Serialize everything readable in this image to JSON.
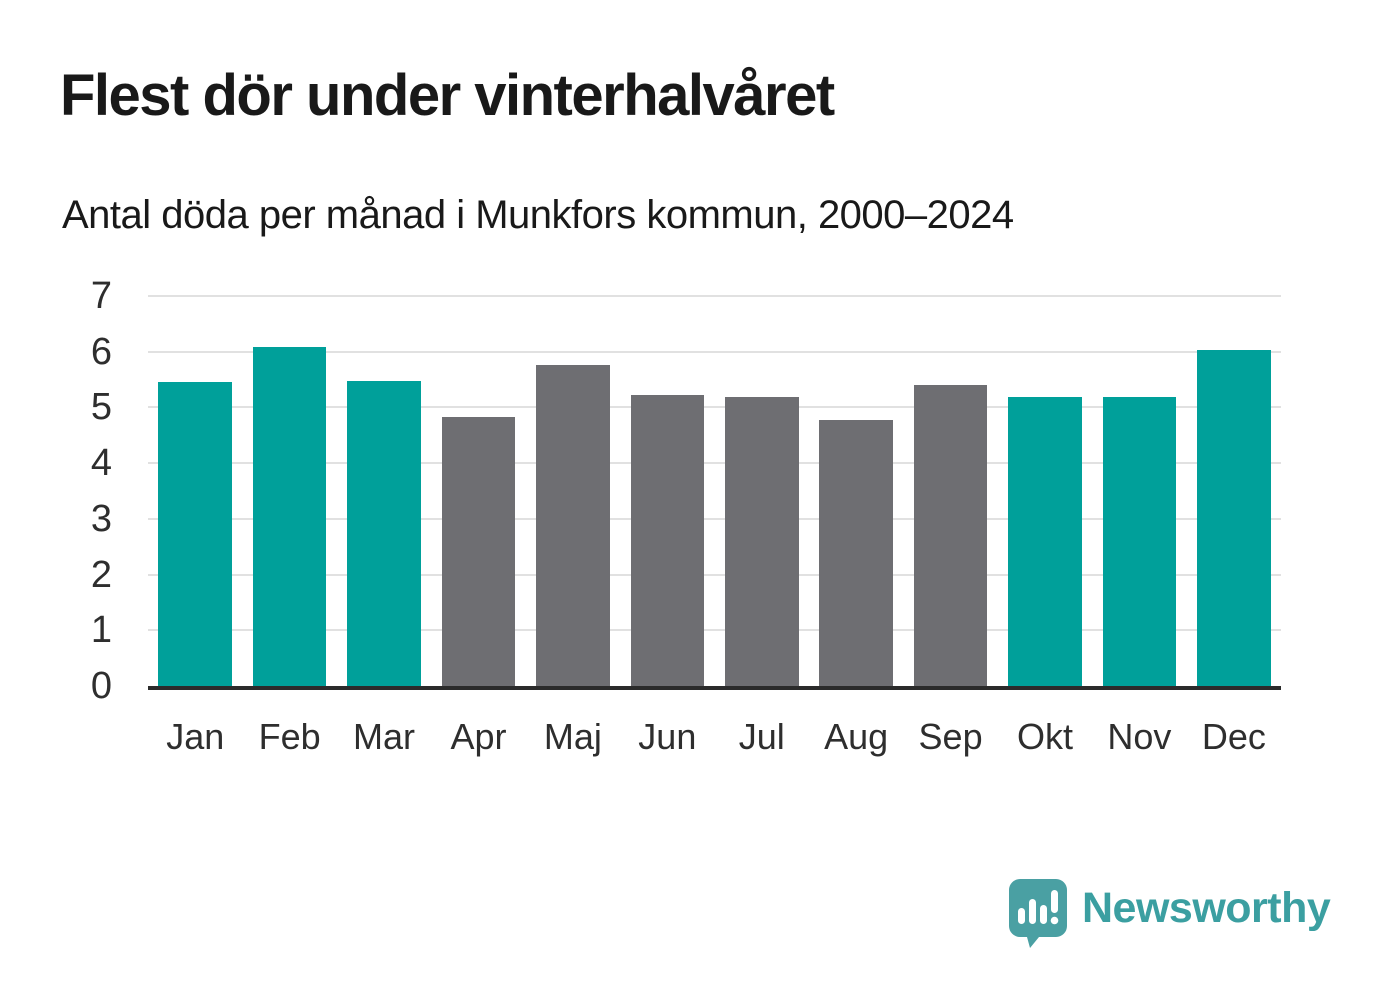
{
  "header": {
    "title": "Flest dör under vinterhalvåret",
    "subtitle": "Antal döda per månad i Munkfors kommun, 2000–2024"
  },
  "chart_data": {
    "type": "bar",
    "title": "Flest dör under vinterhalvåret",
    "subtitle": "Antal döda per månad i Munkfors kommun, 2000–2024",
    "categories": [
      "Jan",
      "Feb",
      "Mar",
      "Apr",
      "Maj",
      "Jun",
      "Jul",
      "Aug",
      "Sep",
      "Okt",
      "Nov",
      "Dec"
    ],
    "values": [
      5.45,
      6.08,
      5.48,
      4.82,
      5.76,
      5.22,
      5.19,
      4.78,
      5.4,
      5.19,
      5.19,
      6.04
    ],
    "bar_groups": [
      "winter",
      "winter",
      "winter",
      "summer",
      "summer",
      "summer",
      "summer",
      "summer",
      "summer",
      "winter",
      "winter",
      "winter"
    ],
    "group_colors": {
      "winter": "#00a09a",
      "summer": "#6e6e72"
    },
    "xlabel": "",
    "ylabel": "",
    "ylim": [
      0,
      7
    ],
    "yticks": [
      0,
      1,
      2,
      3,
      4,
      5,
      6,
      7
    ],
    "grid": true,
    "legend": false
  },
  "footer": {
    "brand": "Newsworthy",
    "brand_color": "#3b9fa1",
    "logo_icon": "bar-chart-speech-bubble-icon",
    "logo_color": "#4aa0a3"
  },
  "colors": {
    "background": "#ffffff",
    "title_text": "#191919",
    "axis_label": "#2e2e2e",
    "gridline": "#e1e1e1",
    "axis_line": "#2b2b2b"
  }
}
